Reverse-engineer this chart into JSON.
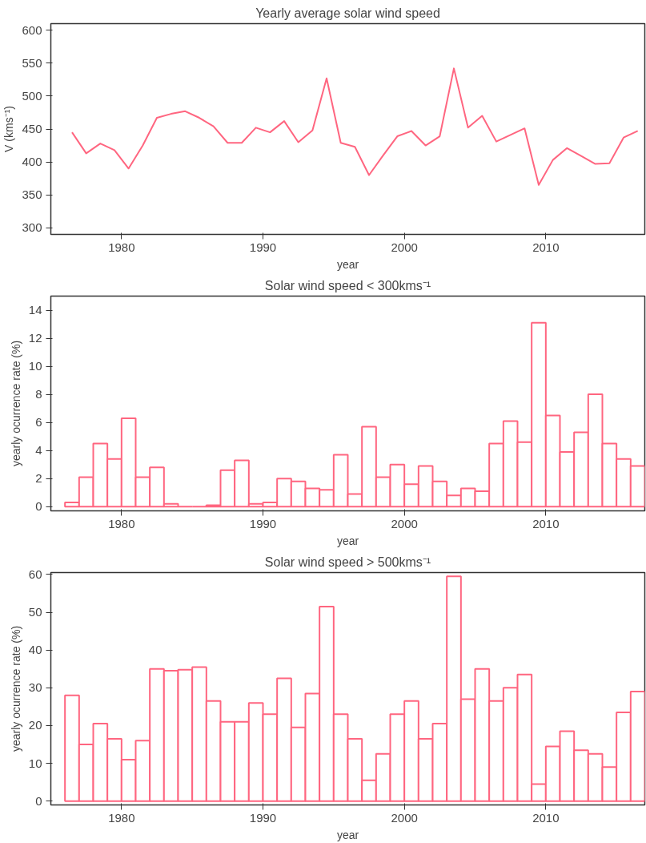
{
  "chart_data": [
    {
      "type": "line",
      "title": "Yearly average solar wind speed",
      "xlabel": "year",
      "ylabel": "V (kms⁻¹)",
      "x": [
        1976.5,
        1977.5,
        1978.5,
        1979.5,
        1980.5,
        1981.5,
        1982.5,
        1983.5,
        1984.5,
        1985.5,
        1986.5,
        1987.5,
        1988.5,
        1989.5,
        1990.5,
        1991.5,
        1992.5,
        1993.5,
        1994.5,
        1995.5,
        1996.5,
        1997.5,
        1998.5,
        1999.5,
        2000.5,
        2001.5,
        2002.5,
        2003.5,
        2004.5,
        2005.5,
        2006.5,
        2007.5,
        2008.5,
        2009.5,
        2010.5,
        2011.5,
        2012.5,
        2013.5,
        2014.5,
        2015.5,
        2016.5
      ],
      "series": [
        {
          "color": "#ff6680",
          "values": [
            445,
            413,
            428,
            418,
            390,
            425,
            467,
            473,
            477,
            467,
            454,
            429,
            429,
            452,
            445,
            462,
            430,
            448,
            527,
            429,
            423,
            380,
            410,
            439,
            447,
            425,
            439,
            542,
            452,
            470,
            431,
            441,
            451,
            365,
            403,
            421,
            409,
            397,
            398,
            437,
            447
          ]
        }
      ],
      "xlim": [
        1975,
        2017
      ],
      "xticks": [
        1980,
        1990,
        2000,
        2010
      ],
      "ylim": [
        290,
        610
      ],
      "yticks": [
        300,
        350,
        400,
        450,
        500,
        550,
        600
      ],
      "grid": false,
      "marker": "none",
      "line_style": "solid"
    },
    {
      "type": "histogram",
      "title": "Solar wind speed < 300kms⁻¹",
      "xlabel": "year",
      "ylabel": "yearly ocurrence rate (%)",
      "color": "#ff6680",
      "bins": [
        1976,
        1977,
        1978,
        1979,
        1980,
        1981,
        1982,
        1983,
        1984,
        1985,
        1986,
        1987,
        1988,
        1989,
        1990,
        1991,
        1992,
        1993,
        1994,
        1995,
        1996,
        1997,
        1998,
        1999,
        2000,
        2001,
        2002,
        2003,
        2004,
        2005,
        2006,
        2007,
        2008,
        2009,
        2010,
        2011,
        2012,
        2013,
        2014,
        2015,
        2016,
        2017
      ],
      "values": [
        0.3,
        2.1,
        4.5,
        3.4,
        6.3,
        2.1,
        2.8,
        0.2,
        0.0,
        0.0,
        0.1,
        2.6,
        3.3,
        0.2,
        0.3,
        2.0,
        1.8,
        1.3,
        1.2,
        3.7,
        0.9,
        5.7,
        2.1,
        3.0,
        1.6,
        2.9,
        1.8,
        0.8,
        1.3,
        1.1,
        4.5,
        6.1,
        4.6,
        13.1,
        6.5,
        3.9,
        5.3,
        8.0,
        4.5,
        3.4,
        2.9
      ],
      "xlim": [
        1975,
        2017
      ],
      "xticks": [
        1980,
        1990,
        2000,
        2010
      ],
      "ylim": [
        -0.3,
        15
      ],
      "yticks": [
        0,
        2,
        4,
        6,
        8,
        10,
        12,
        14
      ],
      "grid": false
    },
    {
      "type": "histogram",
      "title": "Solar wind speed > 500kms⁻¹",
      "xlabel": "year",
      "ylabel": "yearly ocurrence rate (%)",
      "color": "#ff6680",
      "bins": [
        1976,
        1977,
        1978,
        1979,
        1980,
        1981,
        1982,
        1983,
        1984,
        1985,
        1986,
        1987,
        1988,
        1989,
        1990,
        1991,
        1992,
        1993,
        1994,
        1995,
        1996,
        1997,
        1998,
        1999,
        2000,
        2001,
        2002,
        2003,
        2004,
        2005,
        2006,
        2007,
        2008,
        2009,
        2010,
        2011,
        2012,
        2013,
        2014,
        2015,
        2016,
        2017
      ],
      "values": [
        28,
        15,
        20.5,
        16.5,
        11,
        16,
        35,
        34.5,
        34.8,
        35.5,
        26.5,
        21,
        21,
        26,
        23,
        32.5,
        19.5,
        28.5,
        51.5,
        23,
        16.5,
        5.5,
        12.5,
        23,
        26.5,
        16.5,
        20.5,
        59.5,
        27,
        35,
        26.5,
        30,
        33.5,
        4.5,
        14.5,
        18.5,
        13.5,
        12.5,
        9,
        23.5,
        29
      ],
      "xlim": [
        1975,
        2017
      ],
      "xticks": [
        1980,
        1990,
        2000,
        2010
      ],
      "ylim": [
        -1,
        60.5
      ],
      "yticks": [
        0,
        10,
        20,
        30,
        40,
        50,
        60
      ],
      "grid": false
    }
  ]
}
